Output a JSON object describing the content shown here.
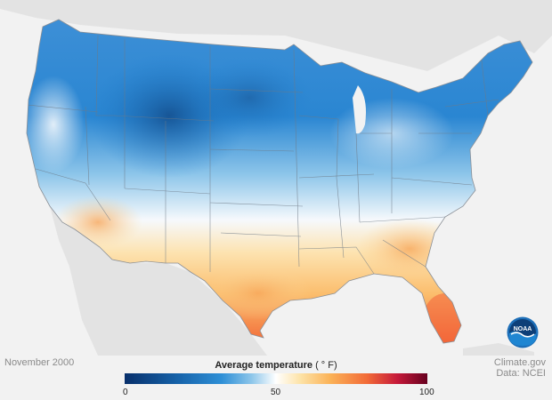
{
  "map": {
    "date_label": "November 2000",
    "credit_line1": "Climate.gov",
    "credit_line2": "Data: NCEI",
    "colors": {
      "background": "#f2f2f2",
      "land_other": "#e1e1e1",
      "cold": "#1f7fcf",
      "very_cold": "#1764ab",
      "cool": "#8ec6ea",
      "neutral": "#ffffff",
      "warm": "#fbb257",
      "hot": "#f26b38"
    }
  },
  "legend": {
    "title": "Average temperature",
    "unit": "( ° F)",
    "ticks": [
      "0",
      "50",
      "100"
    ],
    "range": [
      0,
      100
    ]
  },
  "logo": {
    "text": "NOAA",
    "icon": "noaa-logo-icon"
  }
}
